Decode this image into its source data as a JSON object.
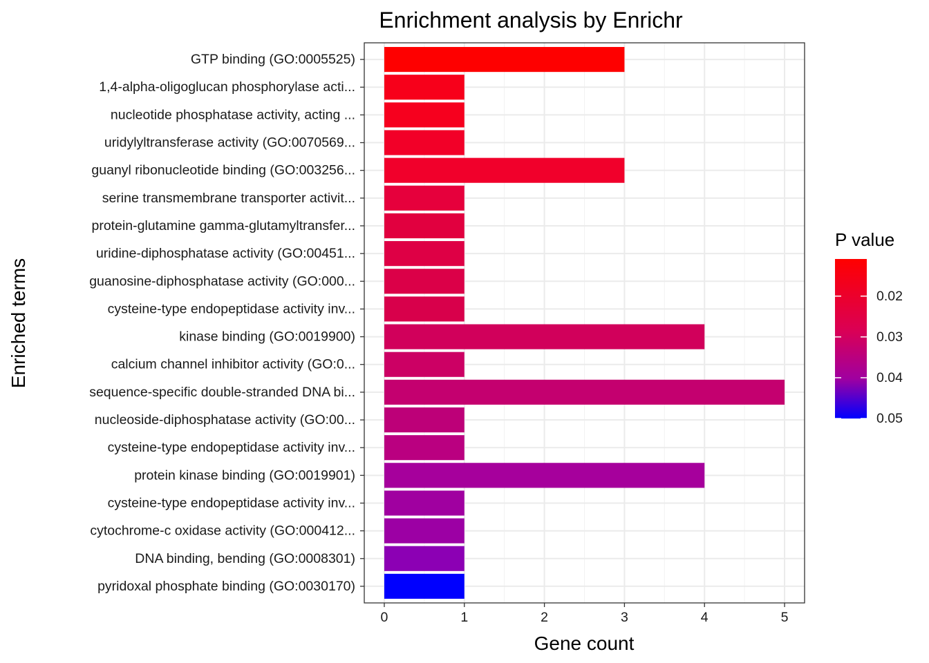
{
  "chart_data": {
    "type": "bar",
    "orientation": "horizontal",
    "title": "Enrichment analysis by Enrichr",
    "xlabel": "Gene count",
    "ylabel": "Enriched terms",
    "xlim": [
      -0.25,
      5.25
    ],
    "xticks": [
      0,
      1,
      2,
      3,
      4,
      5
    ],
    "grid": true,
    "categories": [
      "GTP binding (GO:0005525)",
      "1,4-alpha-oligoglucan phosphorylase acti...",
      "nucleotide phosphatase activity, acting ...",
      "uridylyltransferase activity (GO:0070569...",
      "guanyl ribonucleotide binding (GO:003256...",
      "serine transmembrane transporter activit...",
      "protein-glutamine gamma-glutamyltransfer...",
      "uridine-diphosphatase activity (GO:00451...",
      "guanosine-diphosphatase activity (GO:000...",
      "cysteine-type endopeptidase activity inv...",
      "kinase binding (GO:0019900)",
      "calcium channel inhibitor activity (GO:0...",
      "sequence-specific double-stranded DNA bi...",
      "nucleoside-diphosphatase activity (GO:00...",
      "cysteine-type endopeptidase activity inv...",
      "protein kinase binding (GO:0019901)",
      "cysteine-type endopeptidase activity inv...",
      "cytochrome-c oxidase activity (GO:000412...",
      "DNA binding, bending (GO:0008301)",
      "pyridoxal phosphate binding (GO:0030170)"
    ],
    "values": [
      3,
      1,
      1,
      1,
      3,
      1,
      1,
      1,
      1,
      1,
      4,
      1,
      5,
      1,
      1,
      4,
      1,
      1,
      1,
      1
    ],
    "bar_colors": [
      "#FE0000",
      "#F7001A",
      "#F6001E",
      "#F20028",
      "#F1002B",
      "#E6003C",
      "#E1003F",
      "#DE0045",
      "#DB0048",
      "#D8004B",
      "#D1005B",
      "#CC0064",
      "#C4006F",
      "#BD0078",
      "#BA0080",
      "#A6009C",
      "#A000A0",
      "#9C00A4",
      "#8C00B4",
      "#0000FE"
    ],
    "legend": {
      "title": "P value",
      "placement": "right",
      "gradient_top": "#FF0000",
      "gradient_bottom": "#0000FF",
      "ticks": [
        "0.02",
        "0.03",
        "0.04",
        "0.05"
      ],
      "tick_positions": [
        0.02,
        0.03,
        0.04,
        0.05
      ],
      "range": [
        0.0109,
        0.05
      ]
    }
  }
}
